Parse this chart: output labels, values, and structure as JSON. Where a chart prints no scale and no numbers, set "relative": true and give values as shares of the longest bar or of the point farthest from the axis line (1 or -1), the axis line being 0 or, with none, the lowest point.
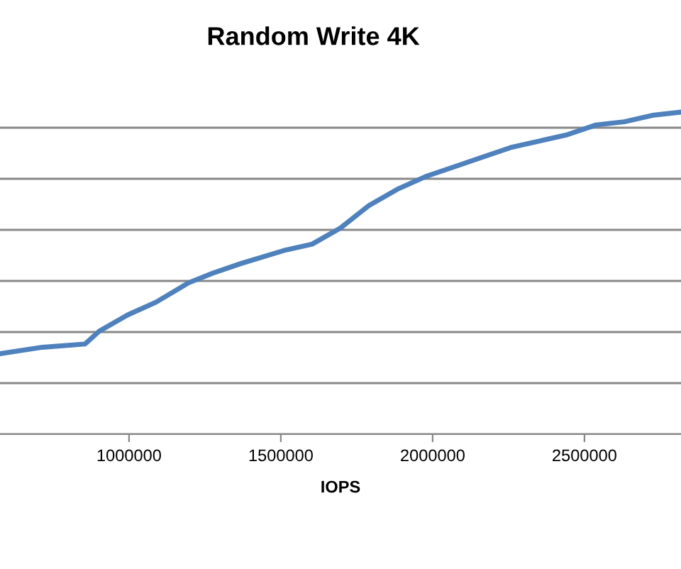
{
  "chart_data": {
    "type": "line",
    "title": "Random Write 4K",
    "xlabel": "IOPS",
    "relative": true,
    "xlim": [
      575000,
      2818000
    ],
    "xticks": [
      1000000,
      1500000,
      2000000,
      2500000
    ],
    "grid": "y",
    "legend": false,
    "marker": "none",
    "line_style": "solid",
    "series": [
      {
        "color": "#4f81bd",
        "x": [
          575000,
          715000,
          855000,
          902000,
          995000,
          1089000,
          1196000,
          1276000,
          1369000,
          1509000,
          1603000,
          1696000,
          1790000,
          1883000,
          1977000,
          2070000,
          2164000,
          2257000,
          2351000,
          2444000,
          2538000,
          2631000,
          2724000,
          2818000
        ],
        "values": [
          0.25,
          0.27,
          0.28,
          0.32,
          0.37,
          0.41,
          0.47,
          0.5,
          0.53,
          0.57,
          0.59,
          0.64,
          0.71,
          0.76,
          0.8,
          0.83,
          0.86,
          0.89,
          0.91,
          0.93,
          0.96,
          0.97,
          0.99,
          1.0
        ]
      }
    ]
  }
}
